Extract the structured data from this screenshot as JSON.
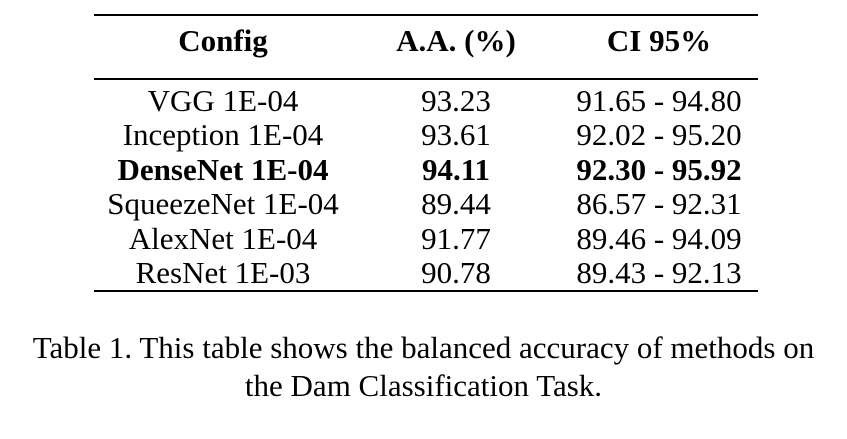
{
  "table": {
    "headers": [
      "Config",
      "A.A. (%)",
      "CI 95%"
    ],
    "rows": [
      {
        "config": "VGG 1E-04",
        "aa": "93.23",
        "ci": "91.65 - 94.80",
        "bold": false
      },
      {
        "config": "Inception 1E-04",
        "aa": "93.61",
        "ci": "92.02 - 95.20",
        "bold": false
      },
      {
        "config": "DenseNet 1E-04",
        "aa": "94.11",
        "ci": "92.30 - 95.92",
        "bold": true
      },
      {
        "config": "SqueezeNet 1E-04",
        "aa": "89.44",
        "ci": "86.57 - 92.31",
        "bold": false
      },
      {
        "config": "AlexNet 1E-04",
        "aa": "91.77",
        "ci": "89.46 - 94.09",
        "bold": false
      },
      {
        "config": "ResNet 1E-03",
        "aa": "90.78",
        "ci": "89.43 - 92.13",
        "bold": false
      }
    ]
  },
  "caption": {
    "line1": "Table 1. This table shows the balanced accuracy of methods on",
    "line2": "the Dam Classification Task."
  }
}
